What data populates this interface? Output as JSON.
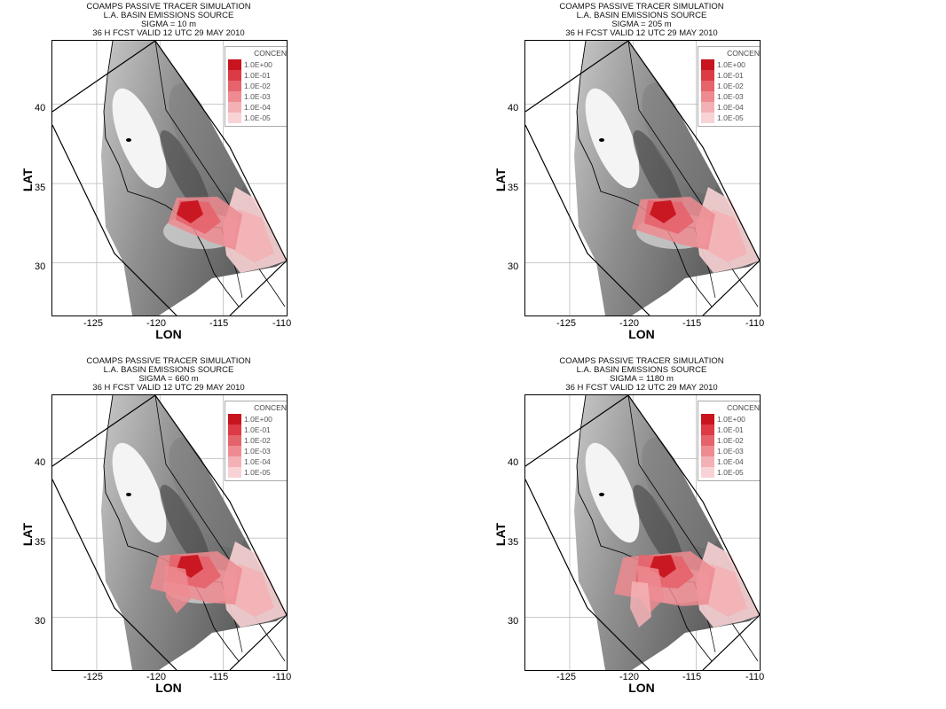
{
  "panels": [
    {
      "title": [
        "COAMPS PASSIVE TRACER SIMULATION",
        "L.A. BASIN EMISSIONS SOURCE",
        "SIGMA = 10 m",
        "36 H FCST VALID 12 UTC 29 MAY 2010"
      ],
      "plume": 1
    },
    {
      "title": [
        "COAMPS PASSIVE TRACER SIMULATION",
        "L.A. BASIN EMISSIONS SOURCE",
        "SIGMA = 205 m",
        "36 H FCST VALID 12 UTC 29 MAY 2010"
      ],
      "plume": 2
    },
    {
      "title": [
        "COAMPS PASSIVE TRACER SIMULATION",
        "L.A. BASIN EMISSIONS SOURCE",
        "SIGMA = 660 m",
        "36 H FCST VALID 12 UTC 29 MAY 2010"
      ],
      "plume": 3
    },
    {
      "title": [
        "COAMPS PASSIVE TRACER SIMULATION",
        "L.A. BASIN EMISSIONS SOURCE",
        "SIGMA = 1180 m",
        "36 H FCST VALID 12 UTC 29 MAY 2010"
      ],
      "plume": 4
    }
  ],
  "axes": {
    "xlabel": "LON",
    "ylabel": "LAT",
    "xticks": [
      "-125",
      "-120",
      "-115",
      "-110"
    ],
    "yticks": [
      "40",
      "35",
      "30"
    ],
    "xlim": [
      -128.5,
      -110
    ],
    "ylim": [
      27,
      44
    ]
  },
  "legend": {
    "title": "CONCEN",
    "labels": [
      "1.0E+00",
      "1.0E-01",
      "1.0E-02",
      "1.0E-03",
      "1.0E-04",
      "1.0E-05"
    ],
    "colors": [
      "#c8141e",
      "#dc3a44",
      "#e5636b",
      "#ed8b91",
      "#f3b1b5",
      "#f8d3d5"
    ]
  }
}
